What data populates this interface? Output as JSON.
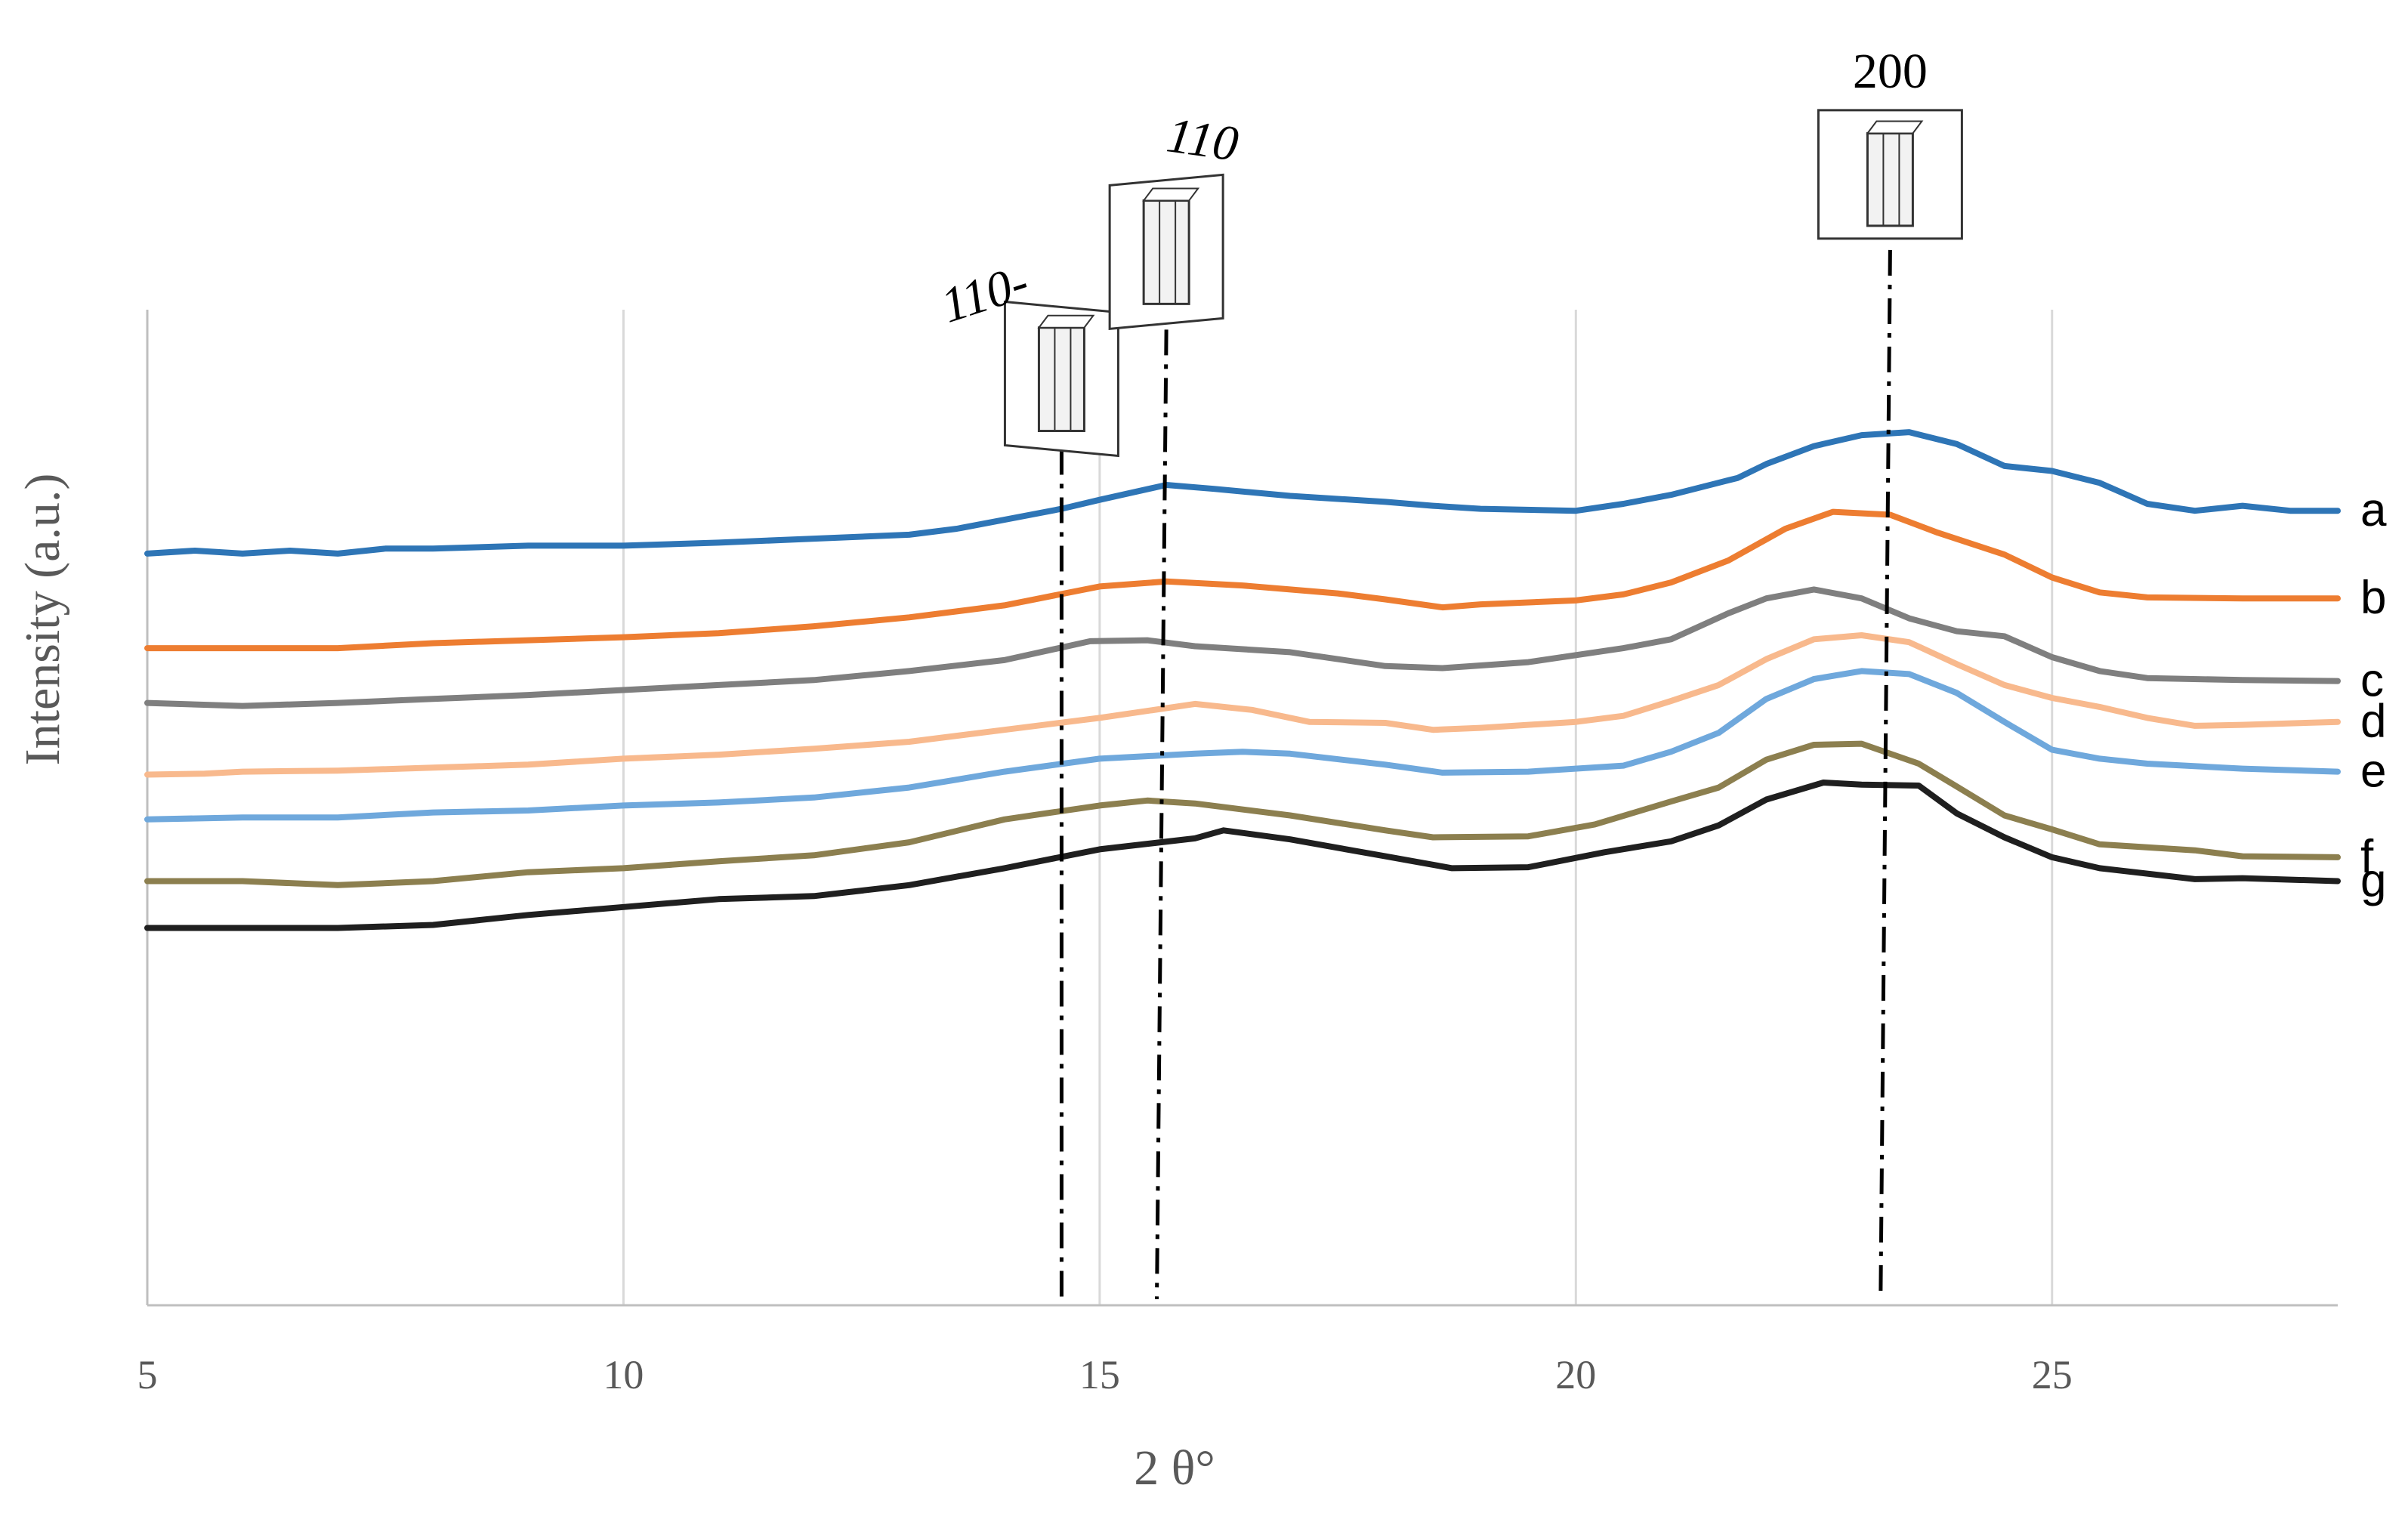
{
  "chart_data": {
    "type": "line",
    "title": "",
    "xlabel": "2 θ°",
    "ylabel": "Intensity (a.u.)",
    "xlim": [
      5,
      28
    ],
    "x_ticks": [
      "5",
      "10",
      "15",
      "20",
      "25"
    ],
    "x_tick_values": [
      5,
      10,
      15,
      20,
      25
    ],
    "ylim": [
      0,
      100
    ],
    "grid": "vertical",
    "reference_lines": [
      {
        "label": "110-",
        "x_top": 14.6,
        "x_bottom": 14.6,
        "y_top": 86,
        "crystal_box": true
      },
      {
        "label": "110",
        "x_top": 15.7,
        "x_bottom": 15.6,
        "y_top": 98,
        "crystal_box": true
      },
      {
        "label": "200",
        "x_top": 23.3,
        "x_bottom": 23.2,
        "y_top": 106,
        "crystal_box": true
      }
    ],
    "series": [
      {
        "name": "a",
        "color": "#2E75B6",
        "points": [
          [
            5,
            75.5
          ],
          [
            5.5,
            75.8
          ],
          [
            6,
            75.5
          ],
          [
            6.5,
            75.8
          ],
          [
            7,
            75.5
          ],
          [
            7.5,
            76
          ],
          [
            8,
            76
          ],
          [
            9,
            76.3
          ],
          [
            10,
            76.3
          ],
          [
            11,
            76.6
          ],
          [
            12,
            77
          ],
          [
            13,
            77.4
          ],
          [
            13.5,
            78
          ],
          [
            14,
            78.9
          ],
          [
            14.6,
            80
          ],
          [
            15,
            80.9
          ],
          [
            15.7,
            82.4
          ],
          [
            16.2,
            82
          ],
          [
            17,
            81.3
          ],
          [
            18,
            80.7
          ],
          [
            18.5,
            80.3
          ],
          [
            19,
            80
          ],
          [
            20,
            79.8
          ],
          [
            20.5,
            80.5
          ],
          [
            21,
            81.4
          ],
          [
            21.7,
            83.1
          ],
          [
            22,
            84.5
          ],
          [
            22.5,
            86.3
          ],
          [
            23,
            87.4
          ],
          [
            23.5,
            87.7
          ],
          [
            24,
            86.5
          ],
          [
            24.5,
            84.3
          ],
          [
            25,
            83.8
          ],
          [
            25.5,
            82.6
          ],
          [
            26,
            80.5
          ],
          [
            26.5,
            79.8
          ],
          [
            27,
            80.3
          ],
          [
            27.5,
            79.8
          ],
          [
            28,
            79.8
          ]
        ]
      },
      {
        "name": "b",
        "color": "#ED7D31",
        "points": [
          [
            5,
            66
          ],
          [
            6,
            66
          ],
          [
            7,
            66
          ],
          [
            8,
            66.5
          ],
          [
            9,
            66.8
          ],
          [
            10,
            67.1
          ],
          [
            11,
            67.5
          ],
          [
            12,
            68.2
          ],
          [
            13,
            69.1
          ],
          [
            14,
            70.3
          ],
          [
            15,
            72.2
          ],
          [
            15.7,
            72.7
          ],
          [
            16.5,
            72.3
          ],
          [
            17.5,
            71.5
          ],
          [
            18,
            70.9
          ],
          [
            18.6,
            70.1
          ],
          [
            19,
            70.4
          ],
          [
            20,
            70.8
          ],
          [
            20.5,
            71.4
          ],
          [
            21,
            72.6
          ],
          [
            21.6,
            74.8
          ],
          [
            22.2,
            78
          ],
          [
            22.7,
            79.7
          ],
          [
            23.3,
            79.4
          ],
          [
            23.8,
            77.6
          ],
          [
            24.5,
            75.4
          ],
          [
            25,
            73.1
          ],
          [
            25.5,
            71.6
          ],
          [
            26,
            71.1
          ],
          [
            27,
            71
          ],
          [
            28,
            71
          ]
        ]
      },
      {
        "name": "c",
        "color": "#7F7F7F",
        "points": [
          [
            5,
            60.5
          ],
          [
            6,
            60.2
          ],
          [
            7,
            60.5
          ],
          [
            8,
            60.9
          ],
          [
            9,
            61.3
          ],
          [
            10,
            61.8
          ],
          [
            11,
            62.3
          ],
          [
            12,
            62.8
          ],
          [
            13,
            63.7
          ],
          [
            14,
            64.8
          ],
          [
            14.9,
            66.7
          ],
          [
            15.5,
            66.8
          ],
          [
            16,
            66.2
          ],
          [
            17,
            65.6
          ],
          [
            18,
            64.2
          ],
          [
            18.6,
            64
          ],
          [
            19.5,
            64.6
          ],
          [
            20.5,
            66
          ],
          [
            21,
            66.9
          ],
          [
            21.6,
            69.5
          ],
          [
            22,
            71
          ],
          [
            22.5,
            71.9
          ],
          [
            23,
            71
          ],
          [
            23.5,
            69
          ],
          [
            24,
            67.7
          ],
          [
            24.5,
            67.2
          ],
          [
            25,
            65.1
          ],
          [
            25.5,
            63.7
          ],
          [
            26,
            63
          ],
          [
            27,
            62.8
          ],
          [
            28,
            62.7
          ]
        ]
      },
      {
        "name": "d",
        "color": "#F8B98D",
        "points": [
          [
            5,
            53.3
          ],
          [
            5.6,
            53.4
          ],
          [
            6,
            53.6
          ],
          [
            7,
            53.7
          ],
          [
            8,
            54
          ],
          [
            9,
            54.3
          ],
          [
            10,
            54.9
          ],
          [
            11,
            55.3
          ],
          [
            12,
            55.9
          ],
          [
            13,
            56.6
          ],
          [
            14,
            57.8
          ],
          [
            15,
            59
          ],
          [
            16,
            60.4
          ],
          [
            16.6,
            59.8
          ],
          [
            17.2,
            58.6
          ],
          [
            18,
            58.5
          ],
          [
            18.5,
            57.8
          ],
          [
            19,
            58
          ],
          [
            20,
            58.6
          ],
          [
            20.5,
            59.2
          ],
          [
            21,
            60.7
          ],
          [
            21.5,
            62.3
          ],
          [
            22,
            64.9
          ],
          [
            22.5,
            66.9
          ],
          [
            23,
            67.3
          ],
          [
            23.5,
            66.6
          ],
          [
            24,
            64.4
          ],
          [
            24.5,
            62.3
          ],
          [
            25,
            61
          ],
          [
            25.5,
            60.1
          ],
          [
            26,
            59
          ],
          [
            26.5,
            58.2
          ],
          [
            27,
            58.3
          ],
          [
            28,
            58.6
          ]
        ]
      },
      {
        "name": "e",
        "color": "#6FA8DC",
        "points": [
          [
            5,
            48.8
          ],
          [
            6,
            49
          ],
          [
            7,
            49
          ],
          [
            8,
            49.5
          ],
          [
            9,
            49.7
          ],
          [
            10,
            50.2
          ],
          [
            11,
            50.5
          ],
          [
            12,
            51
          ],
          [
            13,
            52
          ],
          [
            14,
            53.6
          ],
          [
            15,
            54.9
          ],
          [
            16,
            55.4
          ],
          [
            16.5,
            55.6
          ],
          [
            17,
            55.4
          ],
          [
            18,
            54.3
          ],
          [
            18.6,
            53.5
          ],
          [
            19.5,
            53.6
          ],
          [
            20.5,
            54.2
          ],
          [
            21,
            55.6
          ],
          [
            21.5,
            57.5
          ],
          [
            22,
            60.9
          ],
          [
            22.5,
            62.9
          ],
          [
            23,
            63.7
          ],
          [
            23.5,
            63.4
          ],
          [
            24,
            61.5
          ],
          [
            24.5,
            58.6
          ],
          [
            25,
            55.8
          ],
          [
            25.5,
            54.9
          ],
          [
            26,
            54.4
          ],
          [
            27,
            53.9
          ],
          [
            28,
            53.6
          ]
        ]
      },
      {
        "name": "f",
        "color": "#8C7F4F",
        "points": [
          [
            5,
            42.6
          ],
          [
            6,
            42.6
          ],
          [
            7,
            42.2
          ],
          [
            8,
            42.6
          ],
          [
            9,
            43.5
          ],
          [
            10,
            43.9
          ],
          [
            11,
            44.6
          ],
          [
            12,
            45.2
          ],
          [
            13,
            46.5
          ],
          [
            14,
            48.8
          ],
          [
            15,
            50.2
          ],
          [
            15.5,
            50.7
          ],
          [
            16,
            50.4
          ],
          [
            17,
            49.2
          ],
          [
            18,
            47.7
          ],
          [
            18.5,
            47
          ],
          [
            19.5,
            47.1
          ],
          [
            20.2,
            48.3
          ],
          [
            21,
            50.6
          ],
          [
            21.5,
            52
          ],
          [
            22,
            54.8
          ],
          [
            22.5,
            56.3
          ],
          [
            23,
            56.4
          ],
          [
            23.6,
            54.4
          ],
          [
            24,
            52.1
          ],
          [
            24.5,
            49.2
          ],
          [
            25,
            47.8
          ],
          [
            25.5,
            46.3
          ],
          [
            26.5,
            45.7
          ],
          [
            27,
            45.1
          ],
          [
            28,
            45
          ]
        ]
      },
      {
        "name": "g",
        "color": "#1F1F1F",
        "points": [
          [
            5,
            37.9
          ],
          [
            6,
            37.9
          ],
          [
            7,
            37.9
          ],
          [
            8,
            38.2
          ],
          [
            9,
            39.2
          ],
          [
            10,
            40
          ],
          [
            11,
            40.8
          ],
          [
            12,
            41.1
          ],
          [
            13,
            42.2
          ],
          [
            14,
            43.9
          ],
          [
            15,
            45.8
          ],
          [
            16,
            46.9
          ],
          [
            16.3,
            47.7
          ],
          [
            17,
            46.8
          ],
          [
            18,
            45.1
          ],
          [
            18.7,
            43.9
          ],
          [
            19.5,
            44
          ],
          [
            20.3,
            45.5
          ],
          [
            21,
            46.6
          ],
          [
            21.5,
            48.2
          ],
          [
            22,
            50.8
          ],
          [
            22.6,
            52.5
          ],
          [
            23,
            52.3
          ],
          [
            23.6,
            52.2
          ],
          [
            24,
            49.4
          ],
          [
            24.5,
            47
          ],
          [
            25,
            45
          ],
          [
            25.5,
            43.9
          ],
          [
            26.5,
            42.8
          ],
          [
            27,
            42.9
          ],
          [
            28,
            42.6
          ]
        ]
      }
    ]
  }
}
